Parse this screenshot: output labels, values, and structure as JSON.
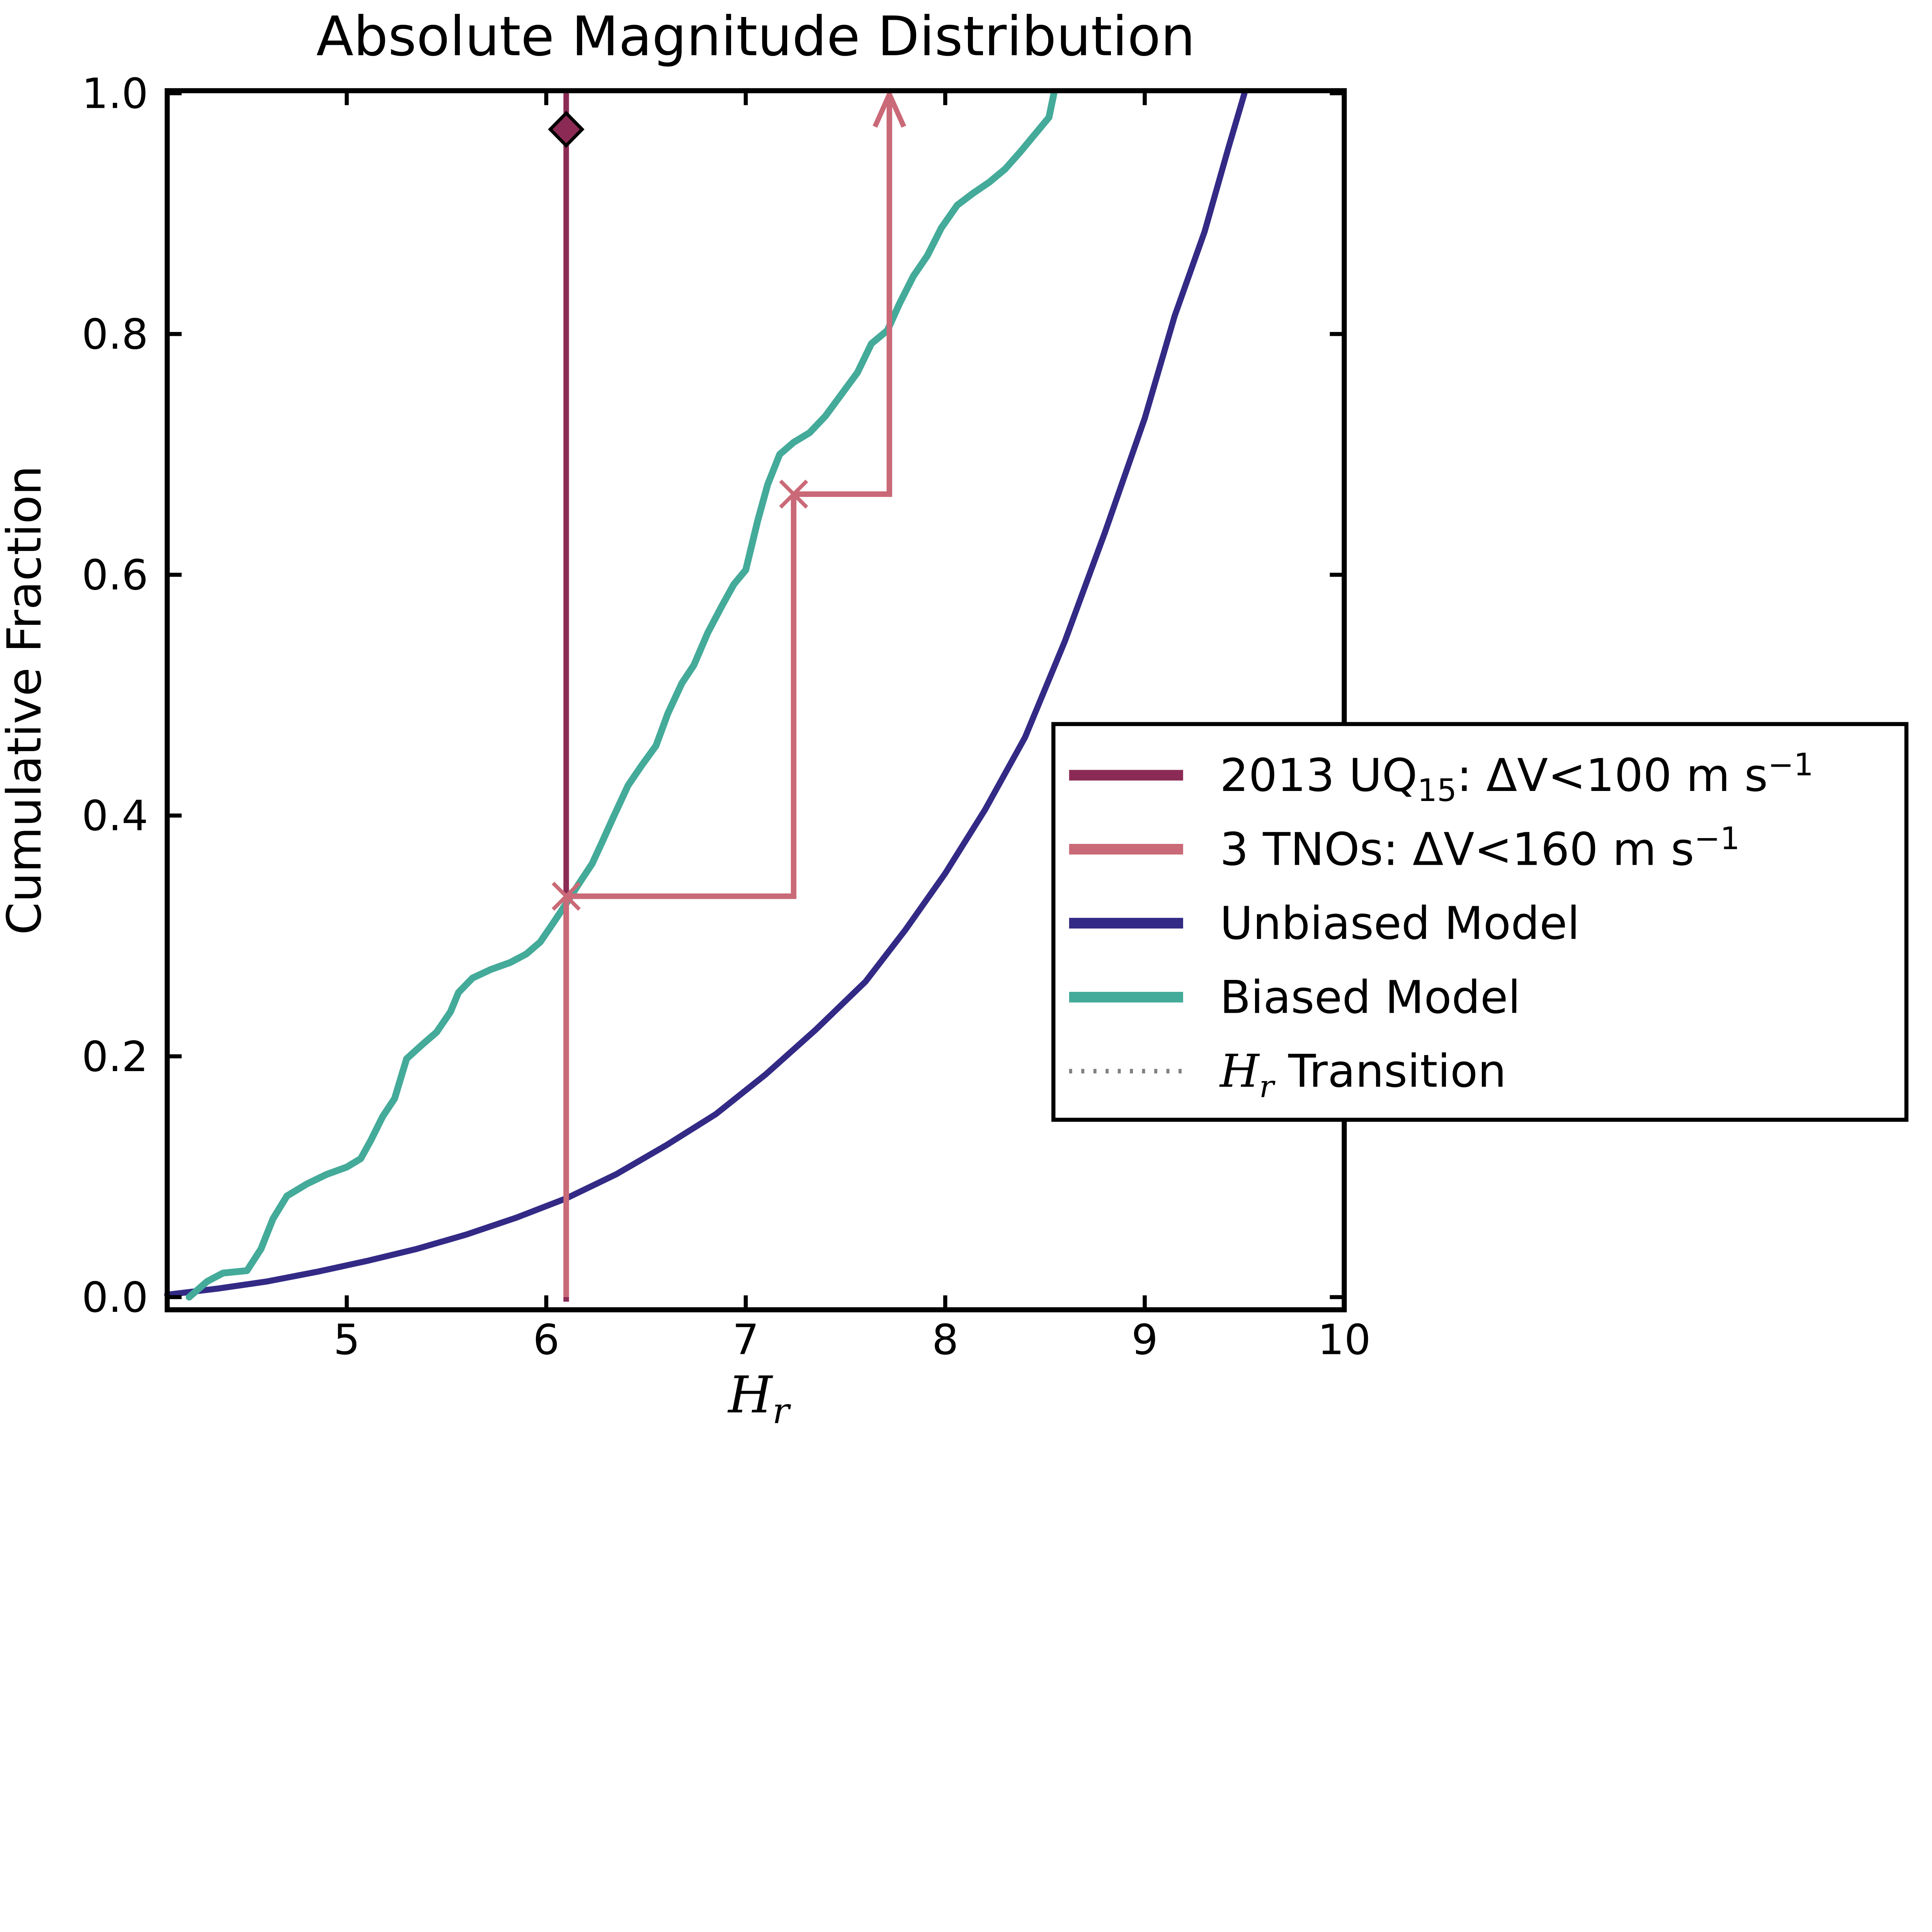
{
  "figure": {
    "title": "Absolute Magnitude Distribution",
    "x_axis": {
      "label_base": "H",
      "label_sub": "r",
      "ticks": [
        "5",
        "6",
        "7",
        "8",
        "9",
        "10"
      ],
      "tick_values": [
        5,
        6,
        7,
        8,
        9,
        10
      ],
      "range": [
        4.1,
        10
      ]
    },
    "y_axis": {
      "label": "Cumulative Fraction",
      "ticks": [
        "0.0",
        "0.2",
        "0.4",
        "0.6",
        "0.8",
        "1.0"
      ],
      "tick_values": [
        0,
        0.2,
        0.4,
        0.6,
        0.8,
        1.0
      ],
      "range": [
        0,
        1
      ]
    }
  },
  "legend": {
    "items": [
      {
        "id": "uq15",
        "color": "#8B2B55",
        "line_style": "solid",
        "label_plain": "2013 UQ15: ΔV<100 m s−1",
        "parts": [
          {
            "t": "2013 UQ"
          },
          {
            "t": "15",
            "script": "sub"
          },
          {
            "t": ": ΔV<100 m s"
          },
          {
            "t": "−1",
            "script": "sup"
          }
        ]
      },
      {
        "id": "tnos",
        "color": "#CA6977",
        "line_style": "solid",
        "label_plain": "3 TNOs: ΔV<160 m s−1",
        "parts": [
          {
            "t": "3 TNOs: ΔV<160 m s"
          },
          {
            "t": "−1",
            "script": "sup"
          }
        ]
      },
      {
        "id": "unbiased",
        "color": "#332A86",
        "line_style": "solid",
        "label_plain": "Unbiased Model",
        "parts": [
          {
            "t": "Unbiased Model"
          }
        ]
      },
      {
        "id": "biased",
        "color": "#44AA99",
        "line_style": "solid",
        "label_plain": "Biased Model",
        "parts": [
          {
            "t": "Biased Model"
          }
        ]
      },
      {
        "id": "transition",
        "color": "#808080",
        "line_style": "dotted",
        "label_plain": "Hr Transition",
        "parts": [
          {
            "t": "H",
            "math": true
          },
          {
            "t": "r",
            "script": "sub",
            "math": true
          },
          {
            "t": " Transition"
          }
        ]
      }
    ]
  },
  "chart_data": {
    "type": "line",
    "title": "Absolute Magnitude Distribution",
    "xlabel": "H_r",
    "ylabel": "Cumulative Fraction",
    "xlim": [
      4.1,
      10
    ],
    "ylim": [
      0,
      1
    ],
    "grid": false,
    "legend_position": "lower-right, box overflows past right axis edge",
    "series": [
      {
        "name": "2013 UQ15: ΔV<100 m s⁻¹",
        "kind": "vline",
        "color": "#8B2B55",
        "x": 6.1,
        "y_span": [
          0,
          1
        ],
        "marker": {
          "shape": "diamond",
          "at": [
            6.1,
            0.97
          ]
        }
      },
      {
        "name": "3 TNOs: ΔV<160 m s⁻¹",
        "kind": "step",
        "color": "#CA6977",
        "points": [
          [
            6.1,
            0
          ],
          [
            6.1,
            0.333
          ],
          [
            7.24,
            0.333
          ],
          [
            7.24,
            0.667
          ],
          [
            7.72,
            0.667
          ],
          [
            7.72,
            1.0
          ]
        ],
        "x_markers": [
          [
            6.1,
            0.333
          ],
          [
            7.24,
            0.667
          ]
        ],
        "arrow_tip": [
          7.72,
          1.0
        ]
      },
      {
        "name": "Unbiased Model",
        "kind": "line",
        "color": "#332A86",
        "points": [
          [
            4.1,
            0.002
          ],
          [
            4.35,
            0.007
          ],
          [
            4.6,
            0.013
          ],
          [
            4.85,
            0.021
          ],
          [
            5.1,
            0.03
          ],
          [
            5.35,
            0.04
          ],
          [
            5.6,
            0.052
          ],
          [
            5.85,
            0.066
          ],
          [
            6.1,
            0.082
          ],
          [
            6.35,
            0.102
          ],
          [
            6.6,
            0.126
          ],
          [
            6.85,
            0.152
          ],
          [
            7.1,
            0.185
          ],
          [
            7.35,
            0.222
          ],
          [
            7.6,
            0.262
          ],
          [
            7.8,
            0.305
          ],
          [
            8.0,
            0.352
          ],
          [
            8.2,
            0.405
          ],
          [
            8.4,
            0.465
          ],
          [
            8.6,
            0.545
          ],
          [
            8.8,
            0.635
          ],
          [
            9.0,
            0.73
          ],
          [
            9.15,
            0.815
          ],
          [
            9.3,
            0.885
          ],
          [
            9.42,
            0.955
          ],
          [
            9.5,
            1.0
          ]
        ]
      },
      {
        "name": "Biased Model",
        "kind": "line",
        "color": "#44AA99",
        "points": [
          [
            4.21,
            0.0
          ],
          [
            4.3,
            0.013
          ],
          [
            4.38,
            0.02
          ],
          [
            4.5,
            0.022
          ],
          [
            4.57,
            0.04
          ],
          [
            4.63,
            0.065
          ],
          [
            4.7,
            0.084
          ],
          [
            4.8,
            0.094
          ],
          [
            4.9,
            0.102
          ],
          [
            5.0,
            0.108
          ],
          [
            5.07,
            0.115
          ],
          [
            5.12,
            0.13
          ],
          [
            5.18,
            0.15
          ],
          [
            5.24,
            0.165
          ],
          [
            5.3,
            0.198
          ],
          [
            5.38,
            0.21
          ],
          [
            5.45,
            0.22
          ],
          [
            5.52,
            0.237
          ],
          [
            5.56,
            0.253
          ],
          [
            5.63,
            0.265
          ],
          [
            5.72,
            0.272
          ],
          [
            5.82,
            0.278
          ],
          [
            5.9,
            0.285
          ],
          [
            5.97,
            0.295
          ],
          [
            6.04,
            0.312
          ],
          [
            6.1,
            0.327
          ],
          [
            6.17,
            0.345
          ],
          [
            6.23,
            0.36
          ],
          [
            6.28,
            0.378
          ],
          [
            6.34,
            0.4
          ],
          [
            6.41,
            0.425
          ],
          [
            6.48,
            0.442
          ],
          [
            6.55,
            0.458
          ],
          [
            6.61,
            0.485
          ],
          [
            6.68,
            0.51
          ],
          [
            6.74,
            0.525
          ],
          [
            6.81,
            0.552
          ],
          [
            6.88,
            0.574
          ],
          [
            6.94,
            0.592
          ],
          [
            7.0,
            0.604
          ],
          [
            7.06,
            0.645
          ],
          [
            7.11,
            0.675
          ],
          [
            7.17,
            0.7
          ],
          [
            7.24,
            0.71
          ],
          [
            7.32,
            0.718
          ],
          [
            7.4,
            0.732
          ],
          [
            7.48,
            0.75
          ],
          [
            7.56,
            0.768
          ],
          [
            7.63,
            0.792
          ],
          [
            7.71,
            0.803
          ],
          [
            7.77,
            0.825
          ],
          [
            7.84,
            0.848
          ],
          [
            7.91,
            0.865
          ],
          [
            7.98,
            0.888
          ],
          [
            8.06,
            0.907
          ],
          [
            8.14,
            0.917
          ],
          [
            8.22,
            0.926
          ],
          [
            8.3,
            0.937
          ],
          [
            8.38,
            0.952
          ],
          [
            8.47,
            0.97
          ],
          [
            8.52,
            0.98
          ],
          [
            8.545,
            1.0
          ]
        ]
      },
      {
        "name": "H_r Transition",
        "kind": "vline",
        "color": "#808080",
        "style": "dotted",
        "x": 6.1,
        "y_span": [
          0,
          1
        ],
        "note": "dotted line hidden beneath the 2013 UQ15 solid line"
      }
    ]
  }
}
